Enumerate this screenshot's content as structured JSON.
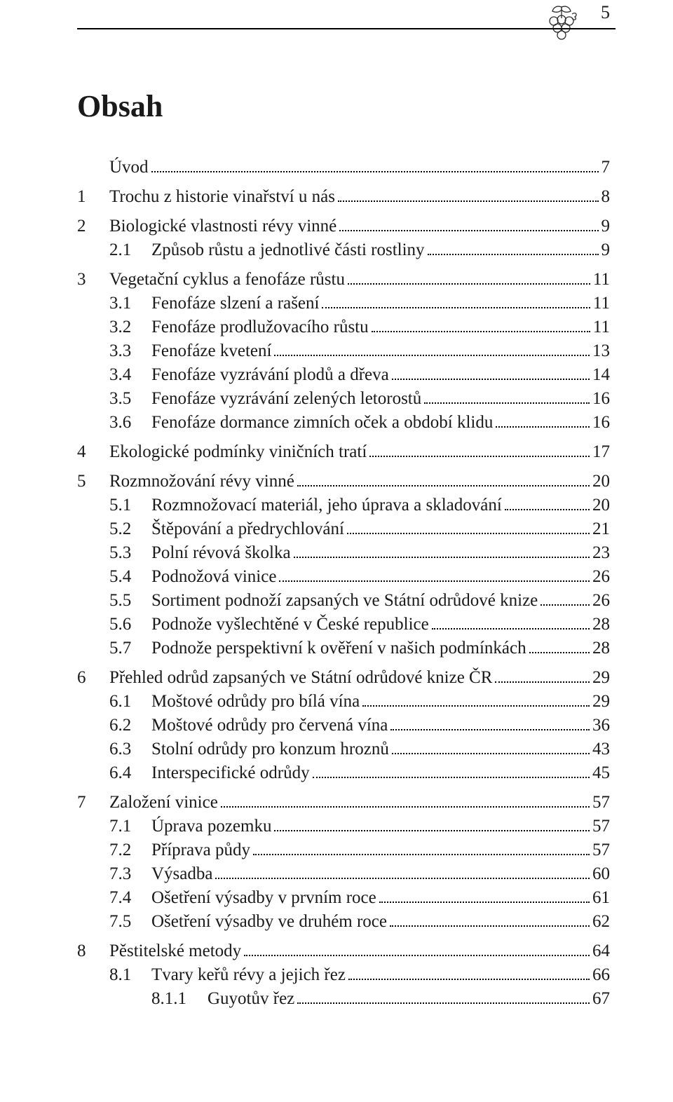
{
  "page_number": "5",
  "title": "Obsah",
  "colors": {
    "text": "#1a1a1a",
    "rule": "#000000",
    "background": "#ffffff"
  },
  "typography": {
    "body_font": "Palatino Linotype serif",
    "body_size_pt": 19,
    "title_size_pt": 33,
    "title_weight": "bold"
  },
  "entries": [
    {
      "level": 0,
      "num": "",
      "label": "Úvod",
      "page": "7",
      "gap": true
    },
    {
      "level": 0,
      "num": "1",
      "label": "Trochu z historie vinařství u nás",
      "page": "8",
      "gap": true
    },
    {
      "level": 0,
      "num": "2",
      "label": "Biologické vlastnosti révy vinné",
      "page": "9",
      "gap": true
    },
    {
      "level": 1,
      "num": "2.1",
      "label": "Způsob růstu a jednotlivé části rostliny",
      "page": "9"
    },
    {
      "level": 0,
      "num": "3",
      "label": "Vegetační cyklus a fenofáze růstu",
      "page": "11",
      "gap": true
    },
    {
      "level": 1,
      "num": "3.1",
      "label": "Fenofáze slzení a rašení",
      "page": "11"
    },
    {
      "level": 1,
      "num": "3.2",
      "label": "Fenofáze prodlužovacího růstu",
      "page": "11"
    },
    {
      "level": 1,
      "num": "3.3",
      "label": "Fenofáze kvetení",
      "page": "13"
    },
    {
      "level": 1,
      "num": "3.4",
      "label": "Fenofáze vyzrávání plodů a dřeva",
      "page": "14"
    },
    {
      "level": 1,
      "num": "3.5",
      "label": "Fenofáze vyzrávání zelených letorostů",
      "page": "16"
    },
    {
      "level": 1,
      "num": "3.6",
      "label": "Fenofáze dormance zimních oček a období klidu",
      "page": "16"
    },
    {
      "level": 0,
      "num": "4",
      "label": "Ekologické podmínky viničních tratí",
      "page": "17",
      "gap": true
    },
    {
      "level": 0,
      "num": "5",
      "label": "Rozmnožování révy vinné",
      "page": "20",
      "gap": true
    },
    {
      "level": 1,
      "num": "5.1",
      "label": "Rozmnožovací materiál, jeho úprava a skladování",
      "page": "20"
    },
    {
      "level": 1,
      "num": "5.2",
      "label": "Štěpování a předrychlování",
      "page": "21"
    },
    {
      "level": 1,
      "num": "5.3",
      "label": "Polní révová školka",
      "page": "23"
    },
    {
      "level": 1,
      "num": "5.4",
      "label": "Podnožová vinice",
      "page": "26"
    },
    {
      "level": 1,
      "num": "5.5",
      "label": "Sortiment podnoží zapsaných ve Státní odrůdové knize",
      "page": "26"
    },
    {
      "level": 1,
      "num": "5.6",
      "label": "Podnože vyšlechtěné v České republice",
      "page": "28"
    },
    {
      "level": 1,
      "num": "5.7",
      "label": "Podnože perspektivní k ověření v našich podmínkách",
      "page": "28"
    },
    {
      "level": 0,
      "num": "6",
      "label": "Přehled odrůd zapsaných ve Státní odrůdové knize ČR",
      "page": "29",
      "gap": true
    },
    {
      "level": 1,
      "num": "6.1",
      "label": "Moštové odrůdy pro bílá vína",
      "page": "29"
    },
    {
      "level": 1,
      "num": "6.2",
      "label": "Moštové odrůdy pro červená vína",
      "page": "36"
    },
    {
      "level": 1,
      "num": "6.3",
      "label": "Stolní odrůdy pro konzum hroznů",
      "page": "43"
    },
    {
      "level": 1,
      "num": "6.4",
      "label": "Interspecifické odrůdy",
      "page": "45"
    },
    {
      "level": 0,
      "num": "7",
      "label": "Založení vinice",
      "page": "57",
      "gap": true
    },
    {
      "level": 1,
      "num": "7.1",
      "label": "Úprava pozemku",
      "page": "57"
    },
    {
      "level": 1,
      "num": "7.2",
      "label": "Příprava půdy",
      "page": "57"
    },
    {
      "level": 1,
      "num": "7.3",
      "label": "Výsadba",
      "page": "60"
    },
    {
      "level": 1,
      "num": "7.4",
      "label": "Ošetření výsadby v prvním roce",
      "page": "61"
    },
    {
      "level": 1,
      "num": "7.5",
      "label": "Ošetření výsadby ve druhém roce",
      "page": "62"
    },
    {
      "level": 0,
      "num": "8",
      "label": "Pěstitelské metody",
      "page": "64",
      "gap": true
    },
    {
      "level": 1,
      "num": "8.1",
      "label": "Tvary keřů révy a jejich řez",
      "page": "66"
    },
    {
      "level": 2,
      "num": "8.1.1",
      "label": "Guyotův řez",
      "page": "67"
    }
  ]
}
